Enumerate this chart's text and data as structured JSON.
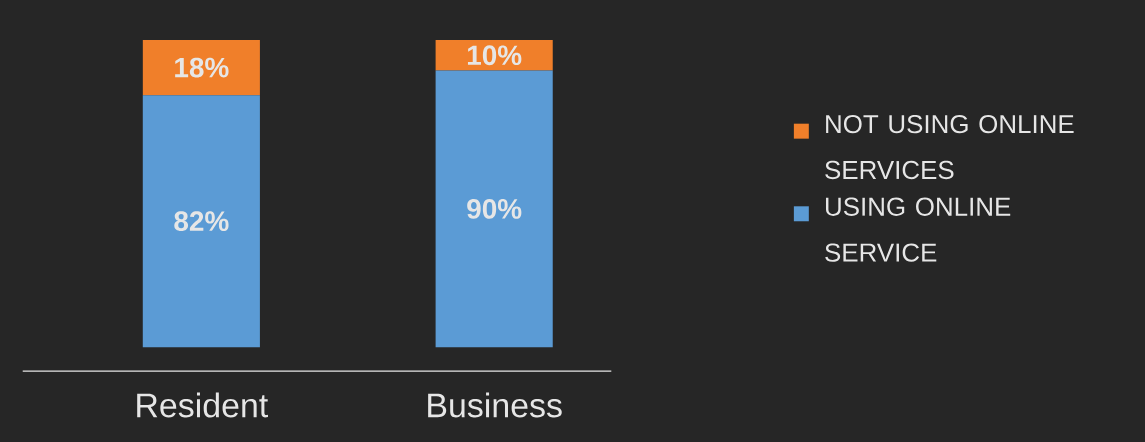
{
  "chart_data": {
    "type": "bar",
    "stacked": true,
    "categories": [
      "Resident",
      "Business"
    ],
    "series": [
      {
        "name": "USING ONLINE SERVICE",
        "color": "#5b9bd5",
        "values": [
          82,
          90
        ],
        "value_labels": [
          "82%",
          "90%"
        ]
      },
      {
        "name": "NOT USING ONLINE SERVICES",
        "color": "#f07f2a",
        "values": [
          18,
          10
        ],
        "value_labels": [
          "18%",
          "10%"
        ]
      }
    ],
    "legend": "right"
  }
}
